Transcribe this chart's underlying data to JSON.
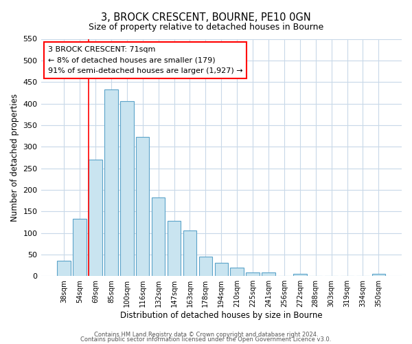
{
  "title": "3, BROCK CRESCENT, BOURNE, PE10 0GN",
  "subtitle": "Size of property relative to detached houses in Bourne",
  "xlabel": "Distribution of detached houses by size in Bourne",
  "ylabel": "Number of detached properties",
  "categories": [
    "38sqm",
    "54sqm",
    "69sqm",
    "85sqm",
    "100sqm",
    "116sqm",
    "132sqm",
    "147sqm",
    "163sqm",
    "178sqm",
    "194sqm",
    "210sqm",
    "225sqm",
    "241sqm",
    "256sqm",
    "272sqm",
    "288sqm",
    "303sqm",
    "319sqm",
    "334sqm",
    "350sqm"
  ],
  "values": [
    35,
    133,
    270,
    432,
    405,
    322,
    183,
    128,
    105,
    45,
    30,
    20,
    8,
    8,
    0,
    5,
    0,
    0,
    0,
    0,
    5
  ],
  "bar_color": "#c9e4f0",
  "bar_edge_color": "#5ba3c9",
  "vline_x_index": 2,
  "vline_color": "red",
  "annotation_text_line1": "3 BROCK CRESCENT: 71sqm",
  "annotation_text_line2": "← 8% of detached houses are smaller (179)",
  "annotation_text_line3": "91% of semi-detached houses are larger (1,927) →",
  "ylim": [
    0,
    550
  ],
  "yticks": [
    0,
    50,
    100,
    150,
    200,
    250,
    300,
    350,
    400,
    450,
    500,
    550
  ],
  "footer1": "Contains HM Land Registry data © Crown copyright and database right 2024.",
  "footer2": "Contains public sector information licensed under the Open Government Licence v3.0.",
  "bg_color": "#ffffff",
  "grid_color": "#c8d8e8"
}
